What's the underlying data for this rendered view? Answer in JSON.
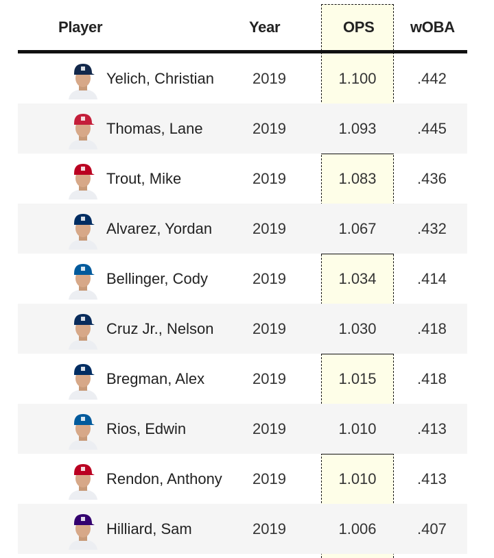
{
  "headers": {
    "player": "Player",
    "year": "Year",
    "ops": "OPS",
    "woba": "wOBA"
  },
  "colors": {
    "ops_highlight": "#fefee8",
    "alt_row": "#f5f5f5"
  },
  "rows": [
    {
      "name": "Yelich, Christian",
      "year": "2019",
      "ops": "1.100",
      "woba": ".442",
      "cap_color": "#12284b",
      "icon": "player-headshot-icon"
    },
    {
      "name": "Thomas, Lane",
      "year": "2019",
      "ops": "1.093",
      "woba": ".445",
      "cap_color": "#c41e3a",
      "icon": "player-headshot-icon"
    },
    {
      "name": "Trout, Mike",
      "year": "2019",
      "ops": "1.083",
      "woba": ".436",
      "cap_color": "#ba0021",
      "icon": "player-headshot-icon"
    },
    {
      "name": "Alvarez, Yordan",
      "year": "2019",
      "ops": "1.067",
      "woba": ".432",
      "cap_color": "#002d62",
      "icon": "player-headshot-icon"
    },
    {
      "name": "Bellinger, Cody",
      "year": "2019",
      "ops": "1.034",
      "woba": ".414",
      "cap_color": "#005a9c",
      "icon": "player-headshot-icon"
    },
    {
      "name": "Cruz Jr., Nelson",
      "year": "2019",
      "ops": "1.030",
      "woba": ".418",
      "cap_color": "#092c5c",
      "icon": "player-headshot-icon"
    },
    {
      "name": "Bregman, Alex",
      "year": "2019",
      "ops": "1.015",
      "woba": ".418",
      "cap_color": "#002d62",
      "icon": "player-headshot-icon"
    },
    {
      "name": "Rios, Edwin",
      "year": "2019",
      "ops": "1.010",
      "woba": ".413",
      "cap_color": "#005a9c",
      "icon": "player-headshot-icon"
    },
    {
      "name": "Rendon, Anthony",
      "year": "2019",
      "ops": "1.010",
      "woba": ".413",
      "cap_color": "#ba0021",
      "icon": "player-headshot-icon"
    },
    {
      "name": "Hilliard, Sam",
      "year": "2019",
      "ops": "1.006",
      "woba": ".407",
      "cap_color": "#33006f",
      "icon": "player-headshot-icon"
    }
  ]
}
